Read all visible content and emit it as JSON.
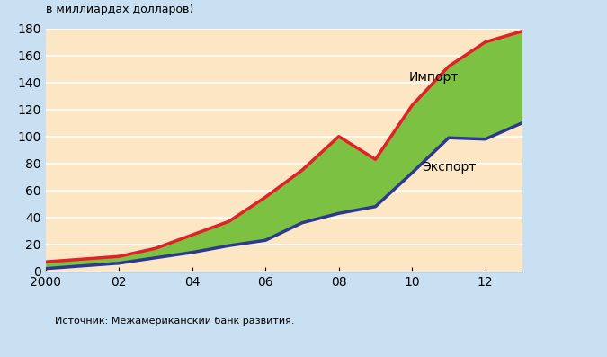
{
  "chart_data": {
    "type": "line",
    "subtitle": "в миллиардах долларов)",
    "source": "Источник: Межамериканский банк развития.",
    "x": [
      2000,
      2001,
      2002,
      2003,
      2004,
      2005,
      2006,
      2007,
      2008,
      2009,
      2010,
      2011,
      2012,
      2013
    ],
    "series": [
      {
        "name": "Импорт",
        "color": "#e32028",
        "values": [
          7,
          9,
          11,
          17,
          27,
          37,
          55,
          75,
          100,
          83,
          123,
          152,
          170,
          178
        ]
      },
      {
        "name": "Экспорт",
        "color": "#2b3990",
        "values": [
          2,
          4,
          6,
          10,
          14,
          19,
          23,
          36,
          43,
          48,
          73,
          99,
          98,
          110
        ]
      }
    ],
    "xlim": [
      2000,
      2013
    ],
    "xticks": [
      2000,
      {
        "value": 2002,
        "label": "02"
      },
      {
        "value": 2004,
        "label": "04"
      },
      {
        "value": 2006,
        "label": "06"
      },
      {
        "value": 2008,
        "label": "08"
      },
      {
        "value": 2010,
        "label": "10"
      },
      {
        "value": 2012,
        "label": "12"
      }
    ],
    "ylim": [
      0,
      180
    ],
    "yticks": [
      0,
      20,
      40,
      60,
      80,
      100,
      120,
      140,
      160,
      180
    ],
    "grid": true
  }
}
